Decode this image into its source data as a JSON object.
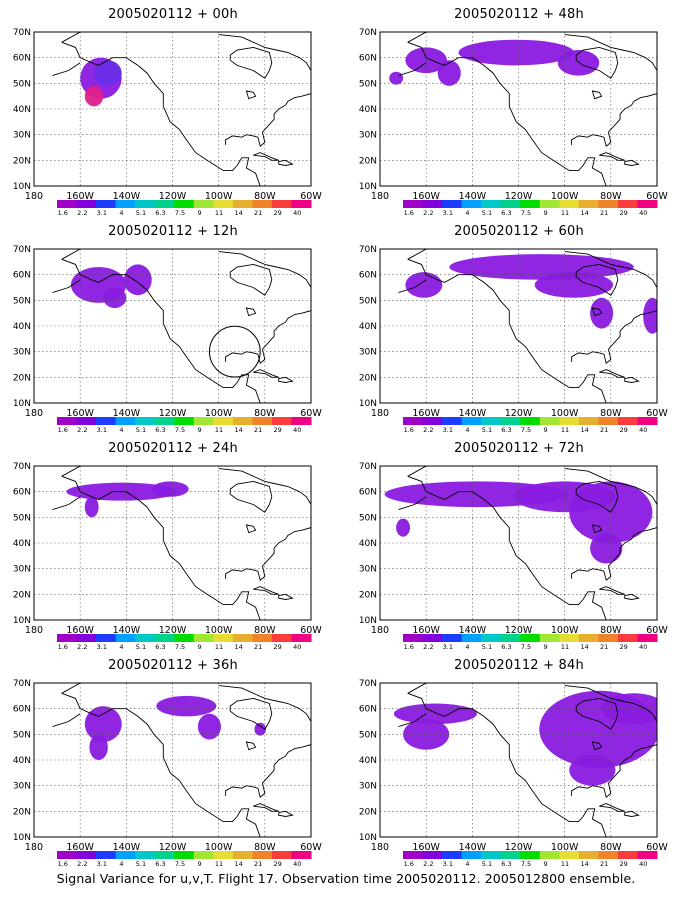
{
  "page": {
    "caption": "Signal Variance for u,v,T. Flight 17. Observation time 2005020112. 2005012800 ensemble."
  },
  "map_axes": {
    "lat_labels": [
      "70N",
      "60N",
      "50N",
      "40N",
      "30N",
      "20N",
      "10N"
    ],
    "lon_labels": [
      "180",
      "160W",
      "140W",
      "120W",
      "100W",
      "80W",
      "60W"
    ]
  },
  "colorbar": {
    "labels": [
      "1.6",
      "2.2",
      "3.1",
      "4",
      "5.1",
      "6.3",
      "7.5",
      "9",
      "11",
      "14",
      "21",
      "29",
      "40"
    ],
    "colors": [
      "#a000c8",
      "#8200dc",
      "#1e3cff",
      "#00a0ff",
      "#00c8c8",
      "#00d28c",
      "#00dc00",
      "#a0e632",
      "#e6dc32",
      "#e6af2d",
      "#f08228",
      "#fa3c3c",
      "#f00082"
    ]
  },
  "chart_data": {
    "type": "map-panels",
    "lon_range": [
      180,
      60
    ],
    "lat_range": [
      10,
      70
    ],
    "panels": [
      {
        "title": "2005020112 + 00h",
        "fill": "#8a1ae0",
        "blobs": [
          {
            "lon": 151,
            "lat": 52,
            "rx": 9,
            "ry": 8
          },
          {
            "lon": 148,
            "lat": 54,
            "rx": 6,
            "ry": 5,
            "color": "#6a2de6"
          },
          {
            "lon": 154,
            "lat": 45,
            "rx": 4,
            "ry": 4,
            "color": "#e0208c"
          }
        ],
        "circle": null
      },
      {
        "title": "2005020112 + 12h",
        "fill": "#8a1ae0",
        "blobs": [
          {
            "lon": 152,
            "lat": 56,
            "rx": 12,
            "ry": 7
          },
          {
            "lon": 135,
            "lat": 58,
            "rx": 6,
            "ry": 6
          },
          {
            "lon": 145,
            "lat": 51,
            "rx": 5,
            "ry": 4
          }
        ],
        "circle": {
          "lon": 93,
          "lat": 30,
          "r": 11
        }
      },
      {
        "title": "2005020112 + 24h",
        "fill": "#8a1ae0",
        "blobs": [
          {
            "lon": 142,
            "lat": 60,
            "rx": 24,
            "ry": 3.5
          },
          {
            "lon": 155,
            "lat": 54,
            "rx": 3,
            "ry": 4
          },
          {
            "lon": 121,
            "lat": 61,
            "rx": 8,
            "ry": 3
          }
        ],
        "circle": null
      },
      {
        "title": "2005020112 + 36h",
        "fill": "#8a1ae0",
        "blobs": [
          {
            "lon": 150,
            "lat": 54,
            "rx": 8,
            "ry": 7
          },
          {
            "lon": 152,
            "lat": 45,
            "rx": 4,
            "ry": 5
          },
          {
            "lon": 114,
            "lat": 61,
            "rx": 13,
            "ry": 4
          },
          {
            "lon": 104,
            "lat": 53,
            "rx": 5,
            "ry": 5
          },
          {
            "lon": 82,
            "lat": 52,
            "rx": 2.5,
            "ry": 2.5
          }
        ],
        "circle": null
      },
      {
        "title": "2005020112 + 48h",
        "fill": "#8a1ae0",
        "blobs": [
          {
            "lon": 160,
            "lat": 59,
            "rx": 9,
            "ry": 5
          },
          {
            "lon": 173,
            "lat": 52,
            "rx": 3,
            "ry": 2.5
          },
          {
            "lon": 150,
            "lat": 54,
            "rx": 5,
            "ry": 5
          },
          {
            "lon": 121,
            "lat": 62,
            "rx": 25,
            "ry": 5
          },
          {
            "lon": 94,
            "lat": 58,
            "rx": 9,
            "ry": 5
          }
        ],
        "circle": null
      },
      {
        "title": "2005020112 + 60h",
        "fill": "#8a1ae0",
        "blobs": [
          {
            "lon": 161,
            "lat": 56,
            "rx": 8,
            "ry": 5
          },
          {
            "lon": 110,
            "lat": 63,
            "rx": 40,
            "ry": 5
          },
          {
            "lon": 96,
            "lat": 56,
            "rx": 17,
            "ry": 5
          },
          {
            "lon": 84,
            "lat": 45,
            "rx": 5,
            "ry": 6
          },
          {
            "lon": 62,
            "lat": 44,
            "rx": 4,
            "ry": 7
          }
        ],
        "circle": null
      },
      {
        "title": "2005020112 + 72h",
        "fill": "#8a1ae0",
        "blobs": [
          {
            "lon": 138,
            "lat": 59,
            "rx": 40,
            "ry": 5
          },
          {
            "lon": 170,
            "lat": 46,
            "rx": 3,
            "ry": 3.5
          },
          {
            "lon": 100,
            "lat": 58,
            "rx": 22,
            "ry": 6
          },
          {
            "lon": 80,
            "lat": 52,
            "rx": 18,
            "ry": 12
          },
          {
            "lon": 82,
            "lat": 38,
            "rx": 7,
            "ry": 6
          }
        ],
        "circle": null
      },
      {
        "title": "2005020112 + 84h",
        "fill": "#8a1ae0",
        "blobs": [
          {
            "lon": 156,
            "lat": 58,
            "rx": 18,
            "ry": 4
          },
          {
            "lon": 160,
            "lat": 50,
            "rx": 10,
            "ry": 6
          },
          {
            "lon": 85,
            "lat": 52,
            "rx": 26,
            "ry": 15
          },
          {
            "lon": 70,
            "lat": 60,
            "rx": 14,
            "ry": 6
          },
          {
            "lon": 88,
            "lat": 36,
            "rx": 10,
            "ry": 6
          }
        ],
        "circle": null
      }
    ]
  }
}
